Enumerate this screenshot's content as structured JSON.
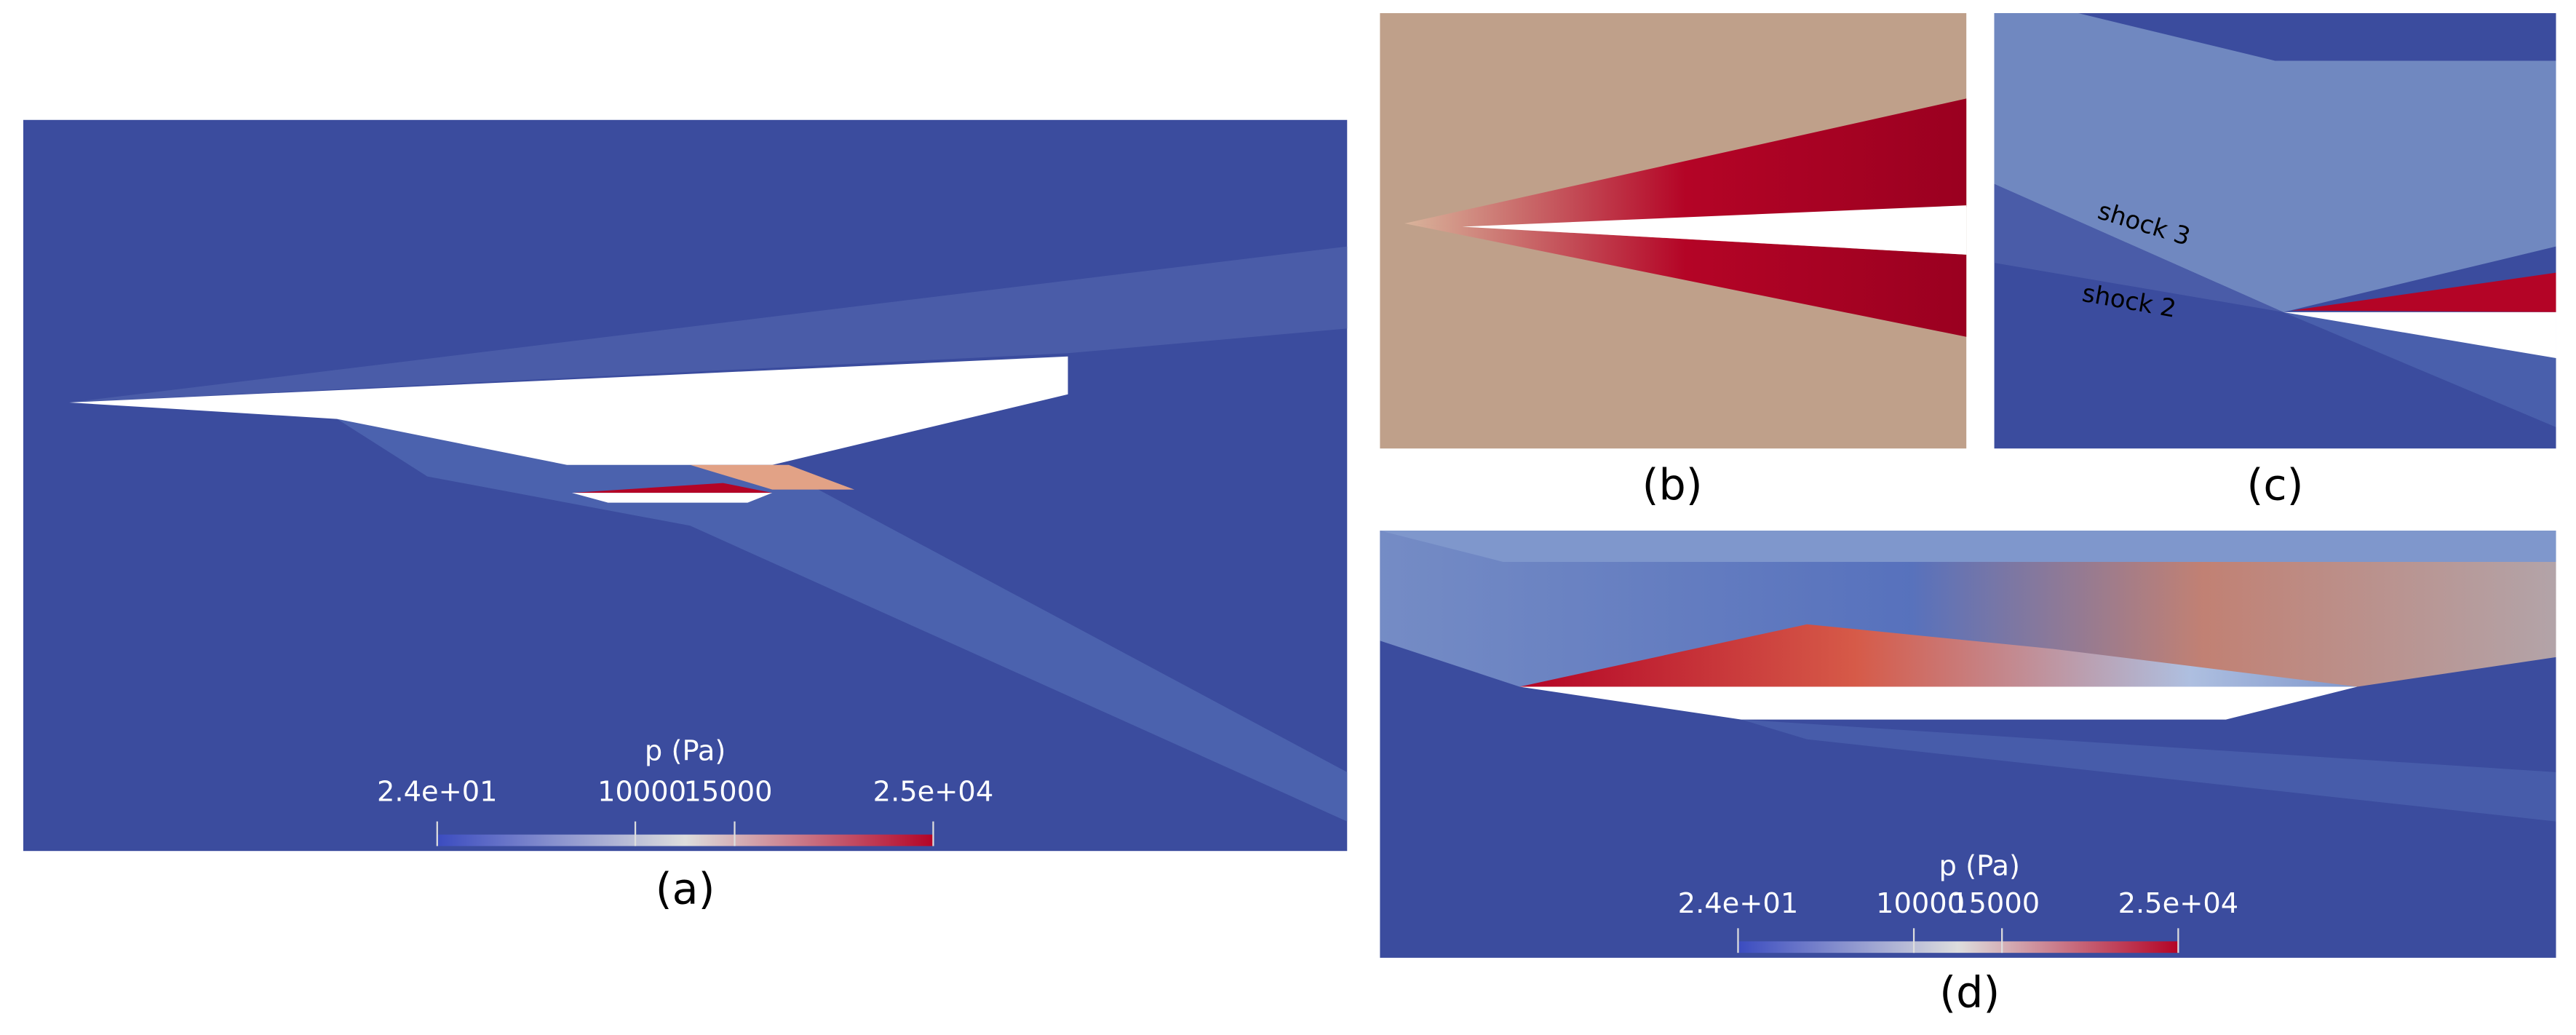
{
  "panels": [
    {
      "label": "(a)",
      "colorbar": {
        "title": "p (Pa)",
        "ticks": [
          {
            "value": 24,
            "label": "2.4e+01"
          },
          10000,
          15000,
          {
            "value": 25000,
            "label": "2.5e+04"
          }
        ]
      }
    },
    {
      "label": "(b)"
    },
    {
      "label": "(c)",
      "annotations": [
        "shock 3",
        "shock 2"
      ]
    },
    {
      "label": "(d)",
      "colorbar": {
        "title": "p (Pa)",
        "ticks": [
          {
            "value": 24,
            "label": "2.4e+01"
          },
          10000,
          15000,
          {
            "value": 25000,
            "label": "2.5e+04"
          }
        ]
      }
    }
  ]
}
